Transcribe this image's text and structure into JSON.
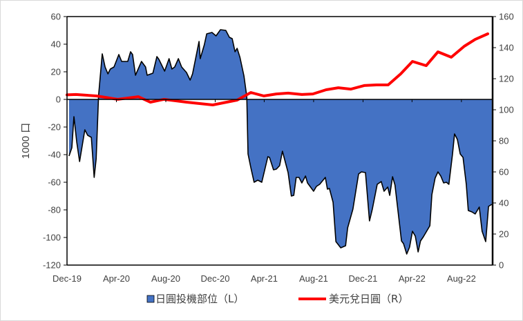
{
  "chart_data": {
    "type": "area+line",
    "title": "",
    "ylabel_left": "1000 口",
    "ylim_left": [
      -120,
      60
    ],
    "yticks_left": [
      -120,
      -100,
      -80,
      -60,
      -40,
      -20,
      0,
      20,
      40,
      60
    ],
    "ylim_right": [
      0,
      160
    ],
    "yticks_right": [
      0,
      20,
      40,
      60,
      80,
      100,
      120,
      140,
      160
    ],
    "xlim": [
      "2019-12-01",
      "2022-10-17"
    ],
    "xticks": [
      {
        "date": "2019-12-01",
        "label": "Dec-19"
      },
      {
        "date": "2020-04-01",
        "label": "Apr-20"
      },
      {
        "date": "2020-08-01",
        "label": "Aug-20"
      },
      {
        "date": "2020-12-01",
        "label": "Dec-20"
      },
      {
        "date": "2021-04-01",
        "label": "Apr-21"
      },
      {
        "date": "2021-08-01",
        "label": "Aug-21"
      },
      {
        "date": "2021-12-01",
        "label": "Dec-21"
      },
      {
        "date": "2022-04-01",
        "label": "Apr-22"
      },
      {
        "date": "2022-08-01",
        "label": "Aug-22"
      }
    ],
    "grid": false,
    "legend_placement": "bottom",
    "series": [
      {
        "name": "日圓投機部位（L）",
        "axis": "left",
        "type": "area",
        "color": "#4472C4",
        "x": [
          "2019-12-06",
          "2019-12-13",
          "2019-12-18",
          "2019-12-25",
          "2020-01-01",
          "2020-01-14",
          "2020-01-21",
          "2020-01-30",
          "2020-02-06",
          "2020-02-11",
          "2020-02-17",
          "2020-02-26",
          "2020-03-04",
          "2020-03-11",
          "2020-03-17",
          "2020-03-26",
          "2020-04-07",
          "2020-04-14",
          "2020-04-29",
          "2020-05-06",
          "2020-05-11",
          "2020-05-18",
          "2020-06-02",
          "2020-06-12",
          "2020-06-16",
          "2020-06-30",
          "2020-07-10",
          "2020-07-15",
          "2020-07-29",
          "2020-08-09",
          "2020-08-16",
          "2020-08-23",
          "2020-09-01",
          "2020-09-09",
          "2020-09-21",
          "2020-09-30",
          "2020-10-06",
          "2020-10-22",
          "2020-10-25",
          "2020-11-04",
          "2020-11-10",
          "2020-11-23",
          "2020-12-03",
          "2020-12-14",
          "2020-12-27",
          "2021-01-05",
          "2021-01-12",
          "2021-01-19",
          "2021-01-24",
          "2021-01-31",
          "2021-02-10",
          "2021-02-17",
          "2021-02-20",
          "2021-02-27",
          "2021-03-07",
          "2021-03-16",
          "2021-03-26",
          "2021-04-10",
          "2021-04-14",
          "2021-04-24",
          "2021-05-01",
          "2021-05-09",
          "2021-05-16",
          "2021-05-30",
          "2021-06-07",
          "2021-06-13",
          "2021-06-19",
          "2021-06-26",
          "2021-07-03",
          "2021-07-12",
          "2021-07-17",
          "2021-08-01",
          "2021-08-08",
          "2021-08-16",
          "2021-08-30",
          "2021-09-04",
          "2021-09-09",
          "2021-09-18",
          "2021-09-25",
          "2021-10-07",
          "2021-10-19",
          "2021-10-24",
          "2021-11-06",
          "2021-11-20",
          "2021-11-27",
          "2021-12-07",
          "2021-12-17",
          "2021-12-24",
          "2022-01-05",
          "2022-01-15",
          "2022-01-22",
          "2022-01-31",
          "2022-02-05",
          "2022-02-12",
          "2022-02-18",
          "2022-03-06",
          "2022-03-11",
          "2022-03-19",
          "2022-03-26",
          "2022-04-02",
          "2022-04-09",
          "2022-04-16",
          "2022-04-22",
          "2022-04-29",
          "2022-05-15",
          "2022-05-20",
          "2022-05-28",
          "2022-06-04",
          "2022-06-11",
          "2022-06-18",
          "2022-06-25",
          "2022-07-01",
          "2022-07-10",
          "2022-07-15",
          "2022-07-22",
          "2022-07-29",
          "2022-08-05",
          "2022-08-13",
          "2022-08-18",
          "2022-08-27",
          "2022-09-04",
          "2022-09-14",
          "2022-09-21",
          "2022-09-30",
          "2022-10-07",
          "2022-10-15"
        ],
        "values": [
          -41,
          -35,
          -12.5,
          -31,
          -45,
          -22,
          -26,
          -27.5,
          -56.5,
          -43,
          3,
          33,
          23.5,
          18.5,
          22,
          23.5,
          32.5,
          27.5,
          27.5,
          34.5,
          32.5,
          17.5,
          27.5,
          23.5,
          17.5,
          19,
          31,
          29,
          20.5,
          29.5,
          22,
          23.5,
          29.5,
          23.5,
          19.5,
          14,
          18.5,
          42,
          29.5,
          39.5,
          47.5,
          48.5,
          46,
          50.5,
          50,
          45,
          44,
          34.5,
          37,
          30.5,
          17,
          2,
          -39.5,
          -49.5,
          -60,
          -58.5,
          -60,
          -41.5,
          -42,
          -51,
          -50.5,
          -48,
          -37.5,
          -53,
          -70,
          -69.5,
          -56.5,
          -56.5,
          -60.5,
          -55.5,
          -60.5,
          -66.5,
          -63,
          -61.5,
          -56.5,
          -65,
          -64.5,
          -74.5,
          -103,
          -107.5,
          -106,
          -93,
          -79.5,
          -54,
          -52.5,
          -53,
          -88,
          -79.5,
          -61.5,
          -59.5,
          -66.5,
          -63.5,
          -69.5,
          -56,
          -62,
          -102.5,
          -104.5,
          -112,
          -107,
          -95.5,
          -99,
          -110.5,
          -102.5,
          -99.5,
          -91.5,
          -69,
          -57,
          -52.5,
          -55.5,
          -60.5,
          -60,
          -61.5,
          -39.5,
          -25,
          -29,
          -39.5,
          -42,
          -61.5,
          -80.5,
          -81.5,
          -83,
          -78,
          -95.5,
          -103,
          -77.5,
          -76
        ]
      },
      {
        "name": "美元兌日圓（R）",
        "axis": "right",
        "type": "line",
        "color": "#FF0000",
        "x": [
          "2019-12-01",
          "2019-12-23",
          "2020-02-12",
          "2020-04-04",
          "2020-05-25",
          "2020-06-24",
          "2020-07-27",
          "2020-09-21",
          "2020-11-25",
          "2021-01-24",
          "2021-02-27",
          "2021-03-31",
          "2021-05-01",
          "2021-05-30",
          "2021-07-03",
          "2021-07-30",
          "2021-09-01",
          "2021-10-01",
          "2021-11-01",
          "2021-12-04",
          "2022-01-03",
          "2022-02-01",
          "2022-03-04",
          "2022-04-02",
          "2022-05-06",
          "2022-06-04",
          "2022-07-07",
          "2022-08-08",
          "2022-09-04",
          "2022-10-05"
        ],
        "values": [
          109.6,
          109.8,
          108.9,
          106.7,
          108.4,
          104.9,
          106.7,
          104.9,
          103.1,
          106.2,
          111.1,
          108.9,
          110.2,
          110.7,
          109.8,
          110.2,
          112.9,
          114.2,
          113.3,
          115.6,
          116,
          116,
          123.1,
          131.1,
          128.4,
          137.3,
          133.8,
          140.9,
          145.3,
          148.9
        ]
      }
    ]
  }
}
